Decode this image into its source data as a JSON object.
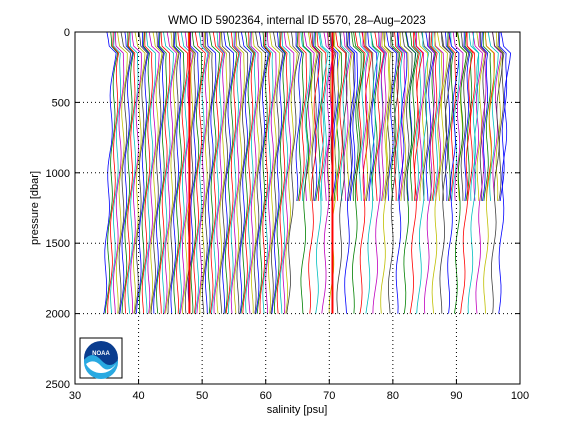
{
  "chart_data": {
    "type": "line",
    "title": "WMO ID 5902364, internal ID 5570, 28–Aug–2023",
    "xlabel": "salinity [psu]",
    "ylabel": "pressure [dbar]",
    "xlim": [
      30,
      100
    ],
    "ylim": [
      0,
      2500
    ],
    "y_reversed": true,
    "xticks": [
      30,
      40,
      50,
      60,
      70,
      80,
      90,
      100
    ],
    "yticks": [
      0,
      500,
      1000,
      1500,
      2000,
      2500
    ],
    "grid": "dotted",
    "offset_profiles": {
      "description_note": "offset salinity profiles, one per cycle",
      "deep_profiles": {
        "x_start": 35.5,
        "x_end": 64.6,
        "max_pressure": 2000
      },
      "mid_profiles": {
        "x_start": 65.0,
        "x_end": 97.6,
        "max_pressure": 1200
      },
      "sparse_deep_profiles": {
        "x_start": 66.5,
        "x_end": 97.6,
        "max_pressure": 2000
      },
      "highlight_x": [
        48.0,
        70.5
      ]
    },
    "series_colors": [
      "#0000ff",
      "#008000",
      "#ff0000",
      "#00bfbf",
      "#bf00bf",
      "#bfbf00",
      "#404040"
    ]
  },
  "logo": {
    "text": "NOAA",
    "name": "noaa-logo"
  }
}
